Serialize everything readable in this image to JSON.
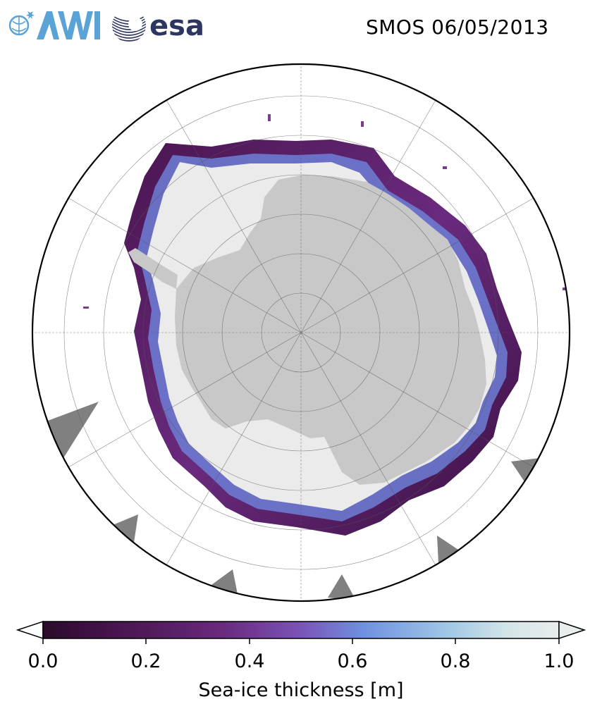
{
  "header": {
    "title": "SMOS 06/05/2013",
    "logo_awi_text": "AWI",
    "logo_esa_text": "esa"
  },
  "map": {
    "projection": "south-polar-stereographic",
    "land_color": "#c8c8c8",
    "thick_ice_color": "#ebebeb",
    "ocean_color": "#ffffff",
    "missing_data_color": "#808080",
    "grid": true
  },
  "colorbar": {
    "label": "Sea-ice thickness [m]",
    "min": 0.0,
    "max": 1.0,
    "ticks": [
      "0.0",
      "0.2",
      "0.4",
      "0.6",
      "0.8",
      "1.0"
    ],
    "extend": "both",
    "colormap": [
      "#2b0b2b",
      "#4a1550",
      "#6a2a7e",
      "#7b54b8",
      "#6f90e0",
      "#9fc6e6",
      "#d3e5e8",
      "#e8eded"
    ]
  }
}
